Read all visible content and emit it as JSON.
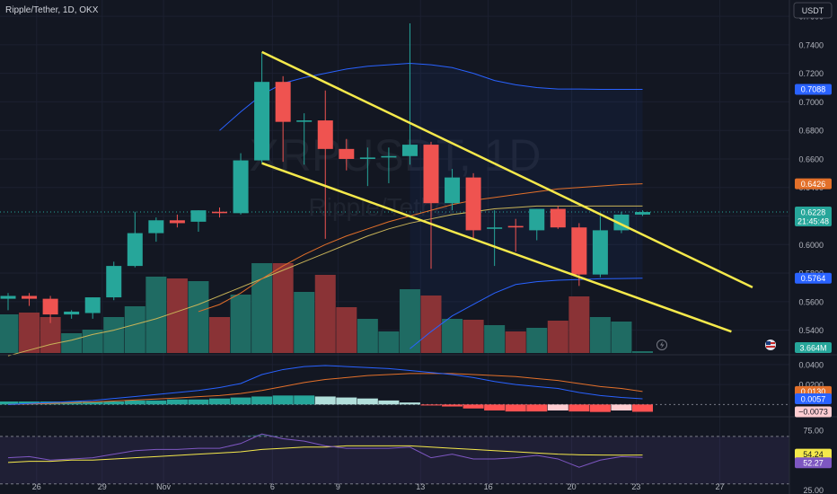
{
  "header": {
    "symbol_title": "Ripple/Tether, 1D, OKX",
    "currency_button": "USDT",
    "watermark_symbol": "XRPUSDT, 1D",
    "watermark_name": "Ripple/Tether"
  },
  "colors": {
    "background": "#131722",
    "up": "#26a69a",
    "down": "#ef5350",
    "volume_up": "#1f6b63",
    "volume_down": "#8a3336",
    "trendline": "#f5e94b",
    "bollinger": "#2962ff",
    "ma_orange": "#e3702a",
    "ma_yellow": "#c9b458",
    "macd_line": "#2962ff",
    "signal_line": "#e3702a",
    "rsi_line": "#7e57c2",
    "rsi_ma": "#f5e94b"
  },
  "chart_data": [
    {
      "type": "candlestick",
      "title": "Ripple/Tether, 1D, OKX",
      "x_tick_labels": [
        "26",
        "29",
        "Nov",
        "6",
        "9",
        "13",
        "16",
        "20",
        "23",
        "27"
      ],
      "y_tick_labels": [
        "0.5400",
        "0.5600",
        "0.5800",
        "0.6000",
        "0.6200",
        "0.6400",
        "0.6600",
        "0.6800",
        "0.7000",
        "0.7200",
        "0.7400",
        "0.7600"
      ],
      "ylim": [
        0.524,
        0.7714
      ],
      "candles": [
        {
          "o": 0.562,
          "h": 0.566,
          "l": 0.554,
          "c": 0.564
        },
        {
          "o": 0.564,
          "h": 0.566,
          "l": 0.557,
          "c": 0.562
        },
        {
          "o": 0.562,
          "h": 0.564,
          "l": 0.545,
          "c": 0.551
        },
        {
          "o": 0.551,
          "h": 0.554,
          "l": 0.548,
          "c": 0.553
        },
        {
          "o": 0.552,
          "h": 0.563,
          "l": 0.548,
          "c": 0.563
        },
        {
          "o": 0.563,
          "h": 0.588,
          "l": 0.561,
          "c": 0.585
        },
        {
          "o": 0.585,
          "h": 0.623,
          "l": 0.584,
          "c": 0.608
        },
        {
          "o": 0.608,
          "h": 0.619,
          "l": 0.602,
          "c": 0.617
        },
        {
          "o": 0.617,
          "h": 0.621,
          "l": 0.612,
          "c": 0.615
        },
        {
          "o": 0.616,
          "h": 0.624,
          "l": 0.609,
          "c": 0.624
        },
        {
          "o": 0.623,
          "h": 0.626,
          "l": 0.619,
          "c": 0.622
        },
        {
          "o": 0.622,
          "h": 0.664,
          "l": 0.621,
          "c": 0.659
        },
        {
          "o": 0.659,
          "h": 0.734,
          "l": 0.657,
          "c": 0.714
        },
        {
          "o": 0.714,
          "h": 0.718,
          "l": 0.658,
          "c": 0.686
        },
        {
          "o": 0.686,
          "h": 0.692,
          "l": 0.656,
          "c": 0.687
        },
        {
          "o": 0.687,
          "h": 0.708,
          "l": 0.604,
          "c": 0.667
        },
        {
          "o": 0.667,
          "h": 0.674,
          "l": 0.652,
          "c": 0.66
        },
        {
          "o": 0.66,
          "h": 0.668,
          "l": 0.641,
          "c": 0.661
        },
        {
          "o": 0.661,
          "h": 0.668,
          "l": 0.643,
          "c": 0.662
        },
        {
          "o": 0.662,
          "h": 0.755,
          "l": 0.656,
          "c": 0.67
        },
        {
          "o": 0.67,
          "h": 0.672,
          "l": 0.583,
          "c": 0.629
        },
        {
          "o": 0.629,
          "h": 0.653,
          "l": 0.624,
          "c": 0.647
        },
        {
          "o": 0.647,
          "h": 0.65,
          "l": 0.604,
          "c": 0.61
        },
        {
          "o": 0.611,
          "h": 0.624,
          "l": 0.585,
          "c": 0.612
        },
        {
          "o": 0.613,
          "h": 0.618,
          "l": 0.595,
          "c": 0.612
        },
        {
          "o": 0.61,
          "h": 0.625,
          "l": 0.603,
          "c": 0.625
        },
        {
          "o": 0.625,
          "h": 0.627,
          "l": 0.611,
          "c": 0.612
        },
        {
          "o": 0.612,
          "h": 0.615,
          "l": 0.571,
          "c": 0.579
        },
        {
          "o": 0.579,
          "h": 0.62,
          "l": 0.577,
          "c": 0.61
        },
        {
          "o": 0.61,
          "h": 0.623,
          "l": 0.608,
          "c": 0.621
        },
        {
          "o": 0.621,
          "h": 0.624,
          "l": 0.62,
          "c": 0.6228
        }
      ],
      "volume": [
        0.43,
        0.45,
        0.4,
        0.22,
        0.26,
        0.4,
        0.52,
        0.85,
        0.83,
        0.8,
        0.4,
        0.65,
        1.0,
        1.0,
        0.68,
        0.87,
        0.51,
        0.38,
        0.24,
        0.71,
        0.64,
        0.38,
        0.37,
        0.31,
        0.24,
        0.28,
        0.36,
        0.63,
        0.4,
        0.35,
        0.02
      ],
      "bollinger_upper": [
        null,
        null,
        null,
        null,
        null,
        null,
        null,
        null,
        null,
        null,
        0.68,
        0.693,
        0.705,
        0.713,
        0.717,
        0.72,
        0.723,
        0.725,
        0.726,
        0.727,
        0.726,
        0.724,
        0.72,
        0.715,
        0.712,
        0.71,
        0.709,
        0.709,
        0.7088,
        0.7088,
        0.7088
      ],
      "bollinger_lower": [
        null,
        null,
        null,
        null,
        null,
        null,
        null,
        null,
        null,
        null,
        null,
        null,
        null,
        null,
        null,
        null,
        null,
        null,
        null,
        0.527,
        0.539,
        0.55,
        0.558,
        0.566,
        0.572,
        0.574,
        0.575,
        0.5755,
        0.576,
        0.5762,
        0.5764
      ],
      "ma_orange": [
        null,
        null,
        null,
        null,
        null,
        null,
        null,
        null,
        null,
        0.553,
        0.558,
        0.566,
        0.576,
        0.585,
        0.593,
        0.6,
        0.606,
        0.611,
        0.616,
        0.62,
        0.624,
        0.628,
        0.631,
        0.633,
        0.635,
        0.637,
        0.639,
        0.64,
        0.641,
        0.642,
        0.6426
      ],
      "ma_yellow": [
        0.522,
        0.526,
        0.53,
        0.533,
        0.537,
        0.54,
        0.544,
        0.548,
        0.553,
        0.558,
        0.564,
        0.57,
        0.576,
        0.582,
        0.588,
        0.594,
        0.6,
        0.606,
        0.611,
        0.615,
        0.618,
        0.621,
        0.623,
        0.625,
        0.626,
        0.627,
        0.627,
        0.627,
        0.627,
        0.627,
        0.627
      ],
      "trendlines": [
        {
          "from": {
            "bar": 12,
            "price": 0.735
          },
          "to": {
            "bar": 35.2,
            "price": 0.57
          }
        },
        {
          "from": {
            "bar": 12,
            "price": 0.657
          },
          "to": {
            "bar": 34.2,
            "price": 0.539
          }
        }
      ],
      "price_labels": {
        "bollinger_upper": "0.7088",
        "ma": "0.6426",
        "last_price": "0.6228",
        "countdown": "21:45:48",
        "bollinger_lower": "0.5764",
        "volume": "3.664M"
      }
    },
    {
      "type": "macd",
      "y_tick_labels": [
        "0.0400",
        "0.0200"
      ],
      "ylim": [
        -0.0105,
        0.048
      ],
      "macd": [
        0.0,
        0.001,
        0.002,
        0.003,
        0.004,
        0.006,
        0.008,
        0.01,
        0.012,
        0.014,
        0.017,
        0.021,
        0.03,
        0.035,
        0.038,
        0.039,
        0.038,
        0.037,
        0.036,
        0.034,
        0.032,
        0.03,
        0.027,
        0.023,
        0.02,
        0.018,
        0.016,
        0.012,
        0.009,
        0.007,
        0.0057
      ],
      "signal": [
        0.0,
        0.0005,
        0.001,
        0.0017,
        0.0025,
        0.0035,
        0.0045,
        0.0055,
        0.0065,
        0.0078,
        0.009,
        0.011,
        0.014,
        0.018,
        0.022,
        0.025,
        0.027,
        0.029,
        0.03,
        0.031,
        0.031,
        0.031,
        0.03,
        0.029,
        0.028,
        0.026,
        0.024,
        0.021,
        0.018,
        0.016,
        0.013
      ],
      "histogram": [
        0.003,
        0.003,
        0.003,
        0.003,
        0.003,
        0.003,
        0.004,
        0.004,
        0.005,
        0.005,
        0.006,
        0.007,
        0.008,
        0.009,
        0.009,
        0.008,
        0.007,
        0.006,
        0.004,
        0.002,
        -0.001,
        -0.002,
        -0.004,
        -0.006,
        -0.007,
        -0.007,
        -0.006,
        -0.007,
        -0.0075,
        -0.006,
        -0.0073
      ],
      "price_labels": {
        "signal": "0.0130",
        "macd": "0.0057",
        "histogram": "−0.0073"
      }
    },
    {
      "type": "rsi",
      "y_tick_labels": [
        "75.00",
        "25.00"
      ],
      "ylim": [
        23,
        85
      ],
      "band": [
        30,
        70
      ],
      "rsi": [
        52,
        53,
        50,
        51,
        52,
        55,
        58,
        59,
        59,
        60,
        60,
        64,
        72,
        68,
        66,
        62,
        60,
        60,
        60,
        61,
        52,
        55,
        51,
        51,
        52,
        54,
        51,
        44,
        50,
        53,
        52.27
      ],
      "rsi_ma": [
        48,
        49,
        49,
        50,
        50,
        51,
        52,
        53,
        54,
        55,
        56,
        57,
        59,
        60,
        61,
        61,
        62,
        62,
        62,
        62,
        61,
        60,
        59,
        58,
        57,
        56,
        55,
        54.5,
        54.3,
        54.2,
        54.24
      ],
      "price_labels": {
        "rsi_ma": "54.24",
        "rsi": "52.27"
      }
    }
  ]
}
